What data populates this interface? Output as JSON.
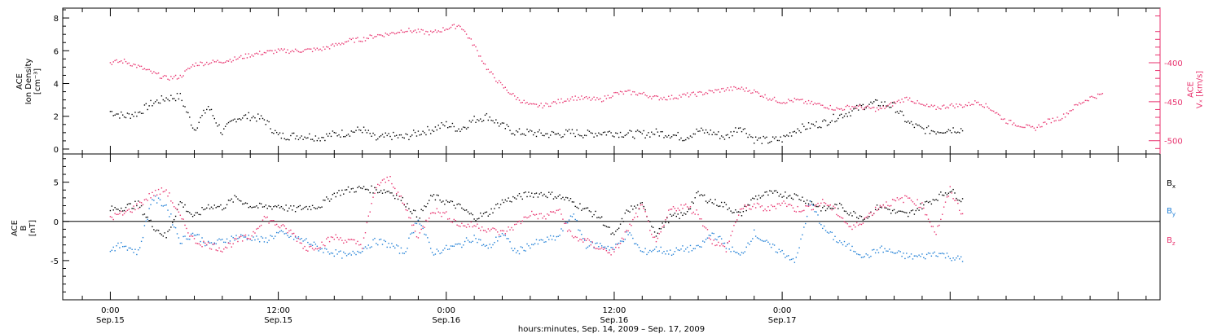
{
  "chart_data": [
    {
      "type": "scatter",
      "panel": "ion-density-and-vx",
      "ylabel_left": [
        "ACE",
        "Ion Density",
        "[cm⁻³]"
      ],
      "ylabel_right": [
        "ACE",
        "Vₓ [km/s]"
      ],
      "ylim_left": [
        -0.3,
        8.6
      ],
      "ylim_right": [
        -517,
        -330
      ],
      "yticks_left": [
        "0",
        "2",
        "4",
        "6",
        "8"
      ],
      "yticks_left_values": [
        0,
        2,
        4,
        6,
        8
      ],
      "yticks_right": [
        "-400",
        "-450",
        "-500"
      ],
      "yticks_right_values": [
        -400,
        -450,
        -500
      ],
      "series": [
        {
          "axis": "left",
          "color": "#000000",
          "hours": [
            0,
            1,
            2,
            3,
            4,
            5,
            6,
            7,
            8,
            9,
            10,
            11,
            12,
            13,
            14,
            15,
            16,
            17,
            18,
            19,
            20,
            21,
            22,
            23,
            24,
            25,
            26,
            27,
            28,
            29,
            30,
            31,
            32,
            33,
            34,
            35,
            36,
            37,
            38,
            39,
            40,
            41,
            42,
            43,
            44,
            45,
            46,
            47,
            48,
            49,
            50,
            51,
            52,
            53,
            54,
            55,
            56,
            57,
            58,
            59,
            60,
            61,
            62,
            63,
            64,
            65,
            66,
            67,
            68,
            69,
            70,
            71
          ],
          "values": [
            2.3,
            2.0,
            2.2,
            2.8,
            3.1,
            3.2,
            1.2,
            2.6,
            1.0,
            1.9,
            2.0,
            1.8,
            0.8,
            0.8,
            0.8,
            0.7,
            0.9,
            1.0,
            1.2,
            0.6,
            0.8,
            0.7,
            1.0,
            1.2,
            1.5,
            1.2,
            1.8,
            2.0,
            1.4,
            1.0,
            1.0,
            0.9,
            0.9,
            1.0,
            0.9,
            1.0,
            1.0,
            0.9,
            0.9,
            1.0,
            0.9,
            0.7,
            1.1,
            1.0,
            0.7,
            1.4,
            0.6,
            0.5,
            0.6,
            1.2,
            1.4,
            1.6,
            2.0,
            2.3,
            2.7,
            2.8,
            2.6,
            1.6,
            1.2,
            1.1,
            1.2,
            1.2,
            null,
            null,
            null,
            null,
            null,
            null,
            null,
            null,
            null,
            null
          ]
        },
        {
          "axis": "right",
          "color": "#e8326e",
          "hours": [
            0,
            1,
            2,
            3,
            4,
            5,
            6,
            7,
            8,
            9,
            10,
            11,
            12,
            13,
            14,
            15,
            16,
            17,
            18,
            19,
            20,
            21,
            22,
            23,
            24,
            25,
            26,
            27,
            28,
            29,
            30,
            31,
            32,
            33,
            34,
            35,
            36,
            37,
            38,
            39,
            40,
            41,
            42,
            43,
            44,
            45,
            46,
            47,
            48,
            49,
            50,
            51,
            52,
            53,
            54,
            55,
            56,
            57,
            58,
            59,
            60,
            61,
            62,
            63,
            64,
            65,
            66,
            67,
            68,
            69,
            70,
            71
          ],
          "values": [
            -400,
            -398,
            -405,
            -413,
            -420,
            -418,
            -402,
            -400,
            -398,
            -395,
            -390,
            -387,
            -385,
            -385,
            -384,
            -383,
            -378,
            -372,
            -370,
            -365,
            -363,
            -358,
            -360,
            -362,
            -356,
            -352,
            -378,
            -410,
            -430,
            -445,
            -455,
            -455,
            -450,
            -445,
            -446,
            -448,
            -440,
            -438,
            -440,
            -445,
            -445,
            -442,
            -440,
            -437,
            -434,
            -433,
            -437,
            -445,
            -450,
            -448,
            -452,
            -455,
            -460,
            -456,
            -458,
            -460,
            -452,
            -445,
            -455,
            -458,
            -455,
            -455,
            -450,
            -460,
            -475,
            -480,
            -485,
            -475,
            -470,
            -455,
            -445,
            -440
          ]
        }
      ]
    },
    {
      "type": "scatter",
      "panel": "magnetic-field",
      "ylabel_left": [
        "ACE",
        "B",
        "[nT]"
      ],
      "ylim": [
        -10,
        8.6
      ],
      "yticks": [
        "5",
        "0",
        "-5"
      ],
      "yticks_values": [
        5,
        0,
        -5
      ],
      "series": [
        {
          "name": "Bx",
          "color": "#000000",
          "hours": [
            0,
            1,
            2,
            3,
            4,
            5,
            6,
            7,
            8,
            9,
            10,
            11,
            12,
            13,
            14,
            15,
            16,
            17,
            18,
            19,
            20,
            21,
            22,
            23,
            24,
            25,
            26,
            27,
            28,
            29,
            30,
            31,
            32,
            33,
            34,
            35,
            36,
            37,
            38,
            39,
            40,
            41,
            42,
            43,
            44,
            45,
            46,
            47,
            48,
            49,
            50,
            51,
            52,
            53,
            54,
            55,
            56,
            57,
            58,
            59,
            60,
            61,
            62,
            63,
            64,
            65,
            66,
            67,
            68,
            69,
            70,
            71
          ],
          "values": [
            1.5,
            1.8,
            2.2,
            -0.5,
            -2.0,
            2.5,
            0.5,
            2.0,
            1.8,
            3.0,
            2.0,
            1.8,
            2.0,
            1.5,
            1.8,
            2.0,
            3.5,
            4.0,
            4.2,
            4.0,
            3.8,
            2.5,
            0.5,
            3.2,
            2.5,
            1.8,
            0.5,
            1.0,
            2.5,
            3.0,
            3.5,
            3.5,
            3.2,
            2.5,
            1.5,
            0.5,
            -2.0,
            1.5,
            2.0,
            -1.5,
            0.5,
            0.8,
            3.5,
            2.5,
            2.0,
            0.8,
            3.0,
            3.5,
            3.5,
            3.2,
            2.5,
            1.5,
            2.0,
            1.0,
            0.5,
            2.0,
            1.2,
            0.8,
            2.0,
            3.0,
            4.0,
            2.5,
            null,
            null,
            null,
            null,
            null,
            null,
            null,
            null,
            null,
            null
          ]
        },
        {
          "name": "By",
          "color": "#1f7fd6",
          "hours": [
            0,
            1,
            2,
            3,
            4,
            5,
            6,
            7,
            8,
            9,
            10,
            11,
            12,
            13,
            14,
            15,
            16,
            17,
            18,
            19,
            20,
            21,
            22,
            23,
            24,
            25,
            26,
            27,
            28,
            29,
            30,
            31,
            32,
            33,
            34,
            35,
            36,
            37,
            38,
            39,
            40,
            41,
            42,
            43,
            44,
            45,
            46,
            47,
            48,
            49,
            50,
            51,
            52,
            53,
            54,
            55,
            56,
            57,
            58,
            59,
            60,
            61,
            62,
            63,
            64,
            65,
            66,
            67,
            68,
            69,
            70,
            71
          ],
          "values": [
            -3.5,
            -3.0,
            -4.0,
            3.0,
            2.0,
            -2.5,
            -1.5,
            -3.0,
            -2.5,
            -2.0,
            -2.0,
            -2.5,
            -1.5,
            -2.0,
            -2.5,
            -3.5,
            -4.0,
            -4.5,
            -3.5,
            -2.5,
            -3.0,
            -4.0,
            0.5,
            -4.0,
            -3.5,
            -3.0,
            -2.0,
            -3.5,
            -1.5,
            -4.0,
            -3.0,
            -2.5,
            -2.0,
            1.0,
            -3.0,
            -3.0,
            -3.5,
            -1.5,
            -4.0,
            -3.5,
            -4.0,
            -3.5,
            -3.5,
            -1.5,
            -3.0,
            -4.5,
            -1.5,
            -3.0,
            -4.0,
            -5.0,
            2.5,
            -1.0,
            -2.5,
            -3.5,
            -4.5,
            -3.5,
            -4.0,
            -4.5,
            -4.5,
            -4.0,
            -4.5,
            -5.0,
            null,
            null,
            null,
            null,
            null,
            null,
            null,
            null,
            null,
            null
          ]
        },
        {
          "name": "Bz",
          "color": "#e8326e",
          "hours": [
            0,
            1,
            2,
            3,
            4,
            5,
            6,
            7,
            8,
            9,
            10,
            11,
            12,
            13,
            14,
            15,
            16,
            17,
            18,
            19,
            20,
            21,
            22,
            23,
            24,
            25,
            26,
            27,
            28,
            29,
            30,
            31,
            32,
            33,
            34,
            35,
            36,
            37,
            38,
            39,
            40,
            41,
            42,
            43,
            44,
            45,
            46,
            47,
            48,
            49,
            50,
            51,
            52,
            53,
            54,
            55,
            56,
            57,
            58,
            59,
            60,
            61,
            62,
            63,
            64,
            65,
            66,
            67,
            68,
            69,
            70,
            71
          ],
          "values": [
            0.5,
            1.0,
            2.0,
            3.5,
            4.0,
            0.5,
            -2.5,
            -3.0,
            -3.5,
            -2.5,
            -2.0,
            0.5,
            -0.5,
            -1.5,
            -3.5,
            -3.0,
            -2.0,
            -2.5,
            -3.0,
            4.5,
            5.5,
            2.0,
            -2.0,
            1.5,
            0.8,
            -0.5,
            -0.5,
            -1.0,
            -1.5,
            -0.5,
            1.0,
            0.5,
            1.5,
            -2.0,
            -2.5,
            -3.5,
            -4.0,
            -1.0,
            2.0,
            -3.0,
            1.5,
            2.0,
            1.0,
            -2.5,
            -3.5,
            1.5,
            2.0,
            1.5,
            2.5,
            1.5,
            1.8,
            2.5,
            1.0,
            -1.0,
            0.5,
            2.0,
            2.5,
            3.0,
            2.0,
            -1.5,
            4.0,
            0.5,
            null,
            null,
            null,
            null,
            null,
            null,
            null,
            null,
            null,
            null
          ]
        }
      ]
    }
  ],
  "legend": [
    {
      "base": "B",
      "sub": "x",
      "color": "#000000"
    },
    {
      "base": "B",
      "sub": "y",
      "color": "#1f7fd6"
    },
    {
      "base": "B",
      "sub": "z",
      "color": "#e8326e"
    }
  ],
  "xaxis": {
    "hours_min": -3.4,
    "hours_max": 75,
    "tick_every_hours": 2,
    "labels": [
      {
        "hours": 0,
        "time": "0:00",
        "day": "Sep.15"
      },
      {
        "hours": 12,
        "time": "12:00",
        "day": "Sep.15"
      },
      {
        "hours": 24,
        "time": "0:00",
        "day": "Sep.16"
      },
      {
        "hours": 36,
        "time": "12:00",
        "day": "Sep.16"
      },
      {
        "hours": 48,
        "time": "0:00",
        "day": "Sep.17"
      }
    ],
    "caption": "hours:minutes, Sep. 14, 2009 – Sep. 17, 2009"
  },
  "colors": {
    "axis": "#000000",
    "accent_right": "#e8326e"
  }
}
